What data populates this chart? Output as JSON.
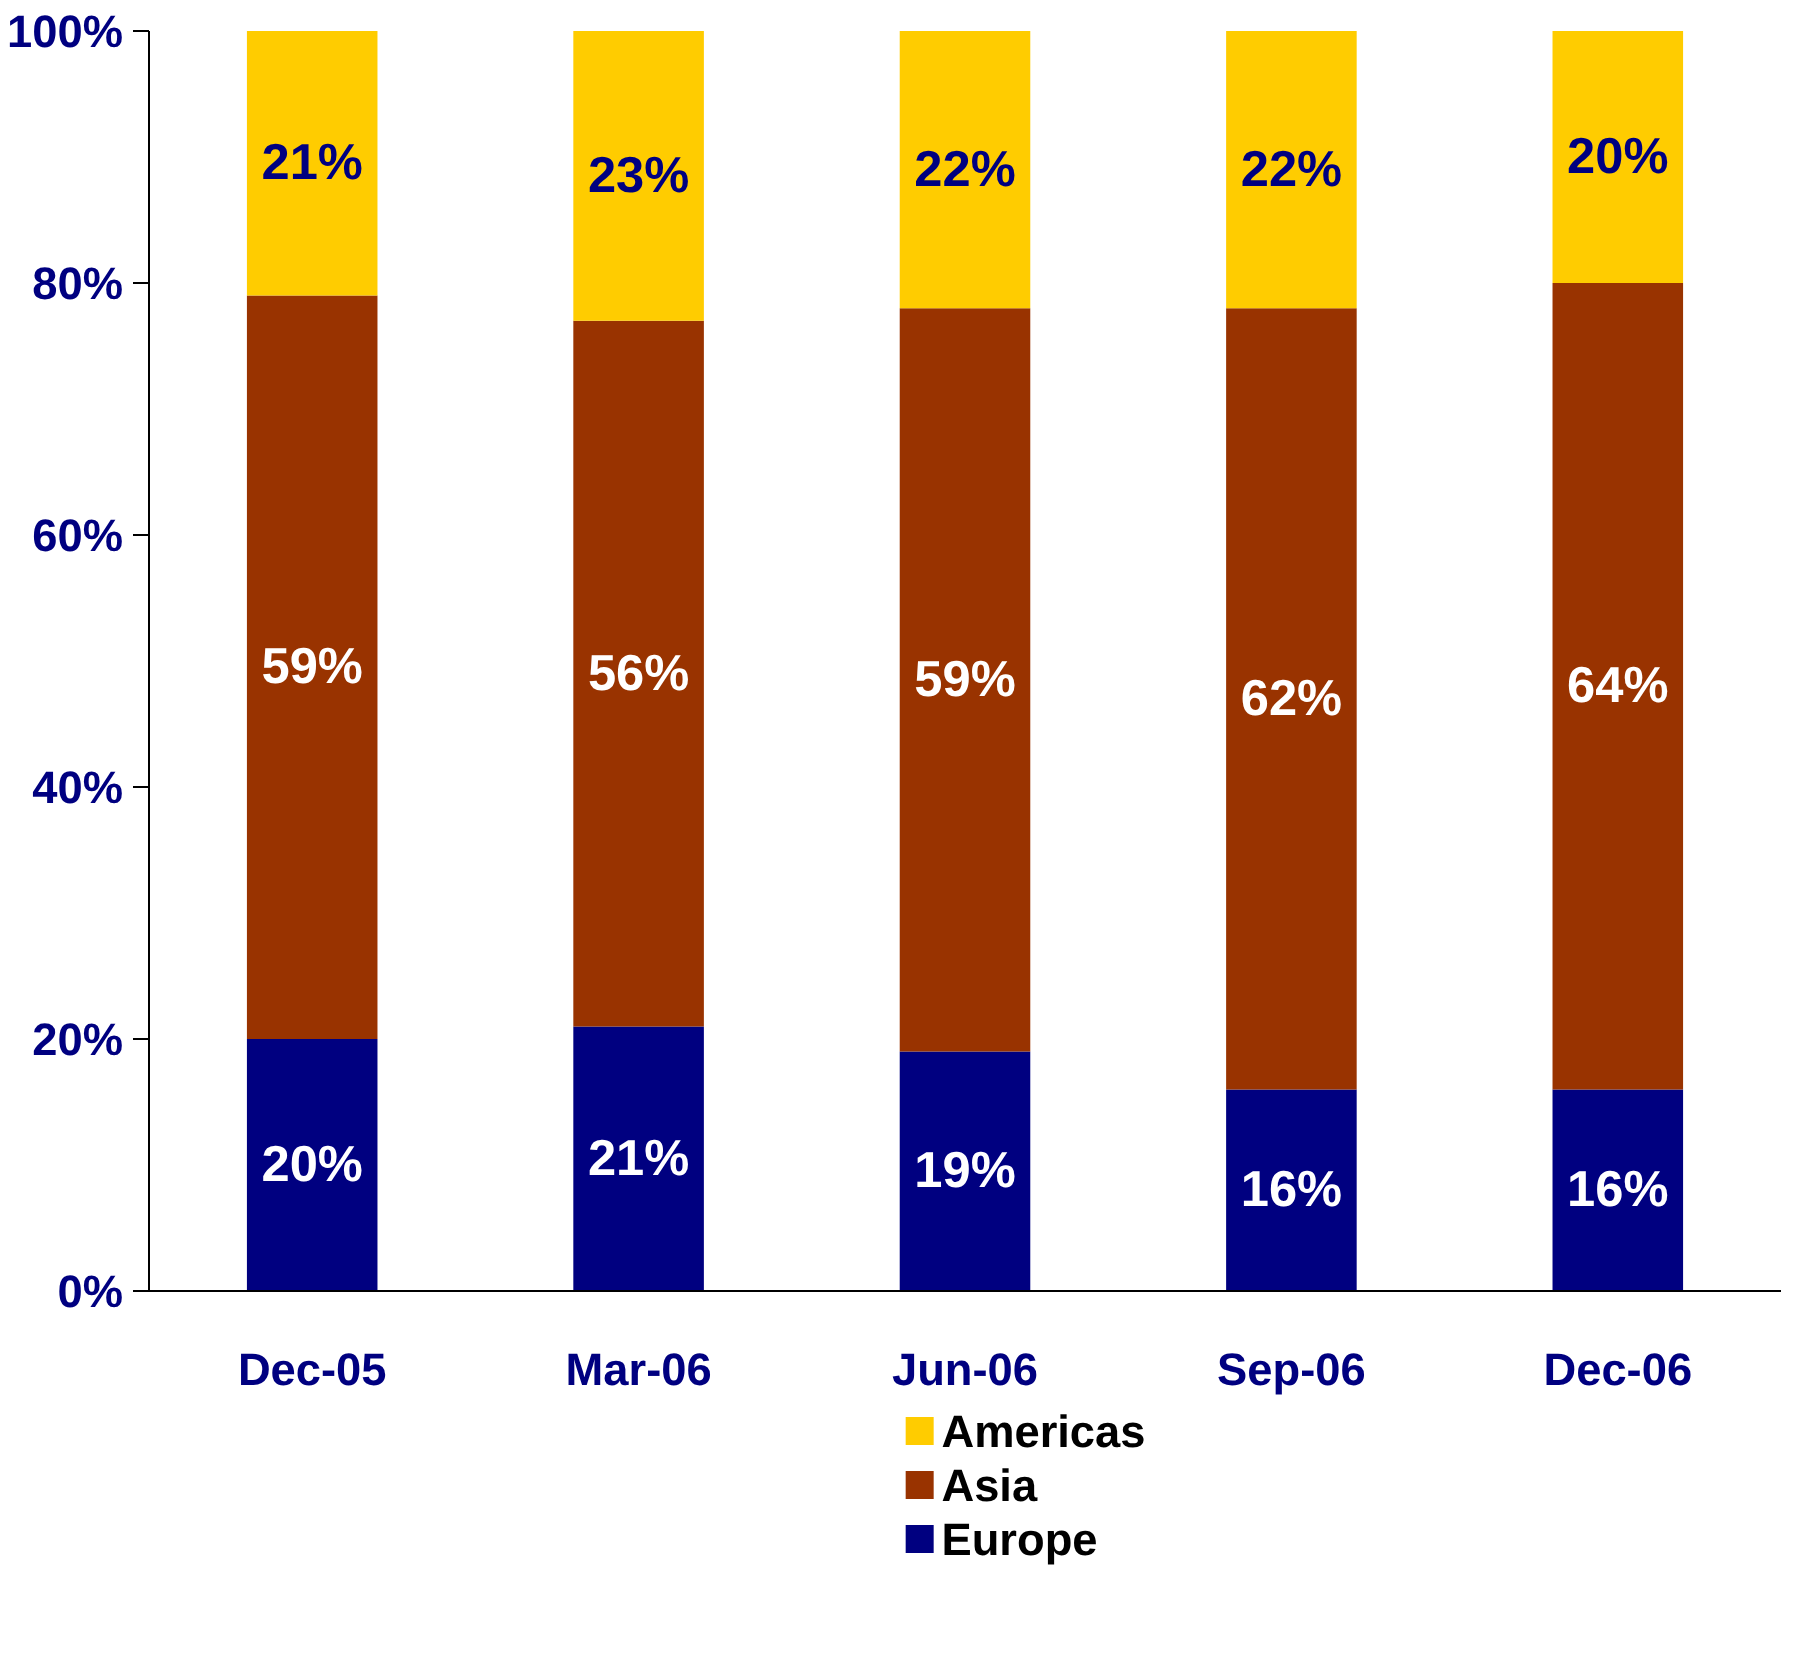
{
  "chart_data": {
    "type": "bar",
    "stacked": true,
    "categories": [
      "Dec-05",
      "Mar-06",
      "Jun-06",
      "Sep-06",
      "Dec-06"
    ],
    "series": [
      {
        "name": "Europe",
        "color": "#000080",
        "values": [
          20,
          21,
          19,
          16,
          16
        ],
        "value_labels": [
          "20%",
          "21%",
          "19%",
          "16%",
          "16%"
        ]
      },
      {
        "name": "Asia",
        "color": "#993300",
        "values": [
          59,
          56,
          59,
          62,
          64
        ],
        "value_labels": [
          "59%",
          "56%",
          "59%",
          "62%",
          "64%"
        ]
      },
      {
        "name": "Americas",
        "color": "#ffcc00",
        "values": [
          21,
          23,
          22,
          22,
          20
        ],
        "value_labels": [
          "21%",
          "23%",
          "22%",
          "22%",
          "20%"
        ]
      }
    ],
    "ylim": [
      0,
      100
    ],
    "yticks": [
      {
        "value": 0,
        "label": "0%"
      },
      {
        "value": 20,
        "label": "20%"
      },
      {
        "value": 40,
        "label": "40%"
      },
      {
        "value": 60,
        "label": "60%"
      },
      {
        "value": 80,
        "label": "80%"
      },
      {
        "value": 100,
        "label": "100%"
      }
    ],
    "grid": false,
    "legend": "bottom"
  }
}
